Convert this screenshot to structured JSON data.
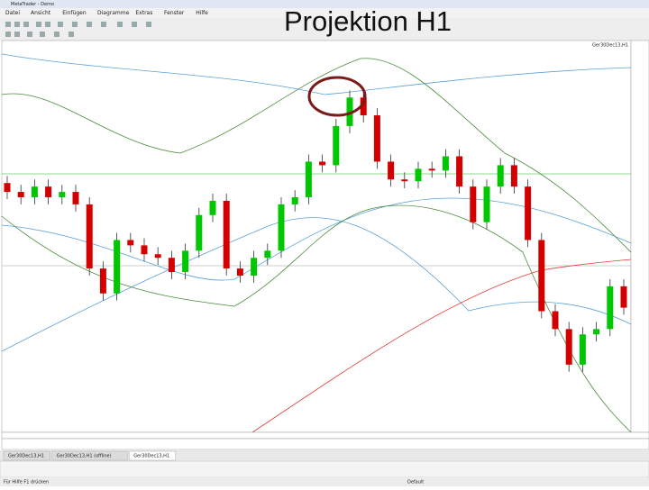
{
  "window_title": "MetaTrader - Demo",
  "menu": [
    "Datei",
    "Ansicht",
    "Einfügen",
    "Diagramme",
    "Extras",
    "Fenster",
    "Hilfe"
  ],
  "overlay_title": "Projektion H1",
  "symbol_label": "Ger30Dec13,H1",
  "tabs": [
    "Ger30Dec13,H1",
    "Ger30Dec13,H1 (offline)",
    "Ger30Dec13,H1"
  ],
  "status": {
    "help": "Für Hilfe F1 drücken",
    "profile": "Default"
  },
  "chart_data": {
    "type": "candlestick",
    "ylim": [
      9080,
      9300
    ],
    "open": [
      9220,
      9215,
      9212,
      9218,
      9212,
      9215,
      9208,
      9172,
      9158,
      9188,
      9185,
      9180,
      9178,
      9170,
      9182,
      9202,
      9210,
      9172,
      9168,
      9178,
      9182,
      9208,
      9212,
      9232,
      9230,
      9252,
      9268,
      9258,
      9232,
      9222,
      9221,
      9228,
      9227,
      9235,
      9218,
      9198,
      9218,
      9230,
      9218,
      9188,
      9148,
      9138,
      9118,
      9135,
      9138,
      9162
    ],
    "high": [
      9224,
      9219,
      9222,
      9222,
      9219,
      9219,
      9212,
      9176,
      9192,
      9192,
      9189,
      9184,
      9182,
      9186,
      9206,
      9214,
      9214,
      9176,
      9182,
      9186,
      9212,
      9216,
      9236,
      9236,
      9256,
      9272,
      9272,
      9262,
      9236,
      9226,
      9232,
      9232,
      9239,
      9239,
      9222,
      9222,
      9234,
      9234,
      9222,
      9192,
      9152,
      9142,
      9139,
      9142,
      9166,
      9166
    ],
    "low": [
      9211,
      9208,
      9208,
      9208,
      9208,
      9204,
      9168,
      9154,
      9154,
      9181,
      9176,
      9174,
      9166,
      9166,
      9178,
      9198,
      9168,
      9164,
      9164,
      9174,
      9178,
      9204,
      9208,
      9226,
      9226,
      9248,
      9254,
      9228,
      9218,
      9217,
      9217,
      9223,
      9223,
      9214,
      9194,
      9194,
      9214,
      9214,
      9184,
      9144,
      9134,
      9114,
      9114,
      9131,
      9134,
      9146
    ],
    "close": [
      9215,
      9212,
      9218,
      9212,
      9215,
      9208,
      9172,
      9158,
      9188,
      9185,
      9180,
      9178,
      9170,
      9182,
      9202,
      9210,
      9172,
      9168,
      9178,
      9182,
      9208,
      9212,
      9232,
      9230,
      9252,
      9268,
      9258,
      9232,
      9222,
      9221,
      9228,
      9227,
      9235,
      9218,
      9198,
      9218,
      9230,
      9218,
      9188,
      9148,
      9138,
      9118,
      9135,
      9138,
      9162,
      9150
    ],
    "up_color": "#00c800",
    "down_color": "#d40000"
  }
}
